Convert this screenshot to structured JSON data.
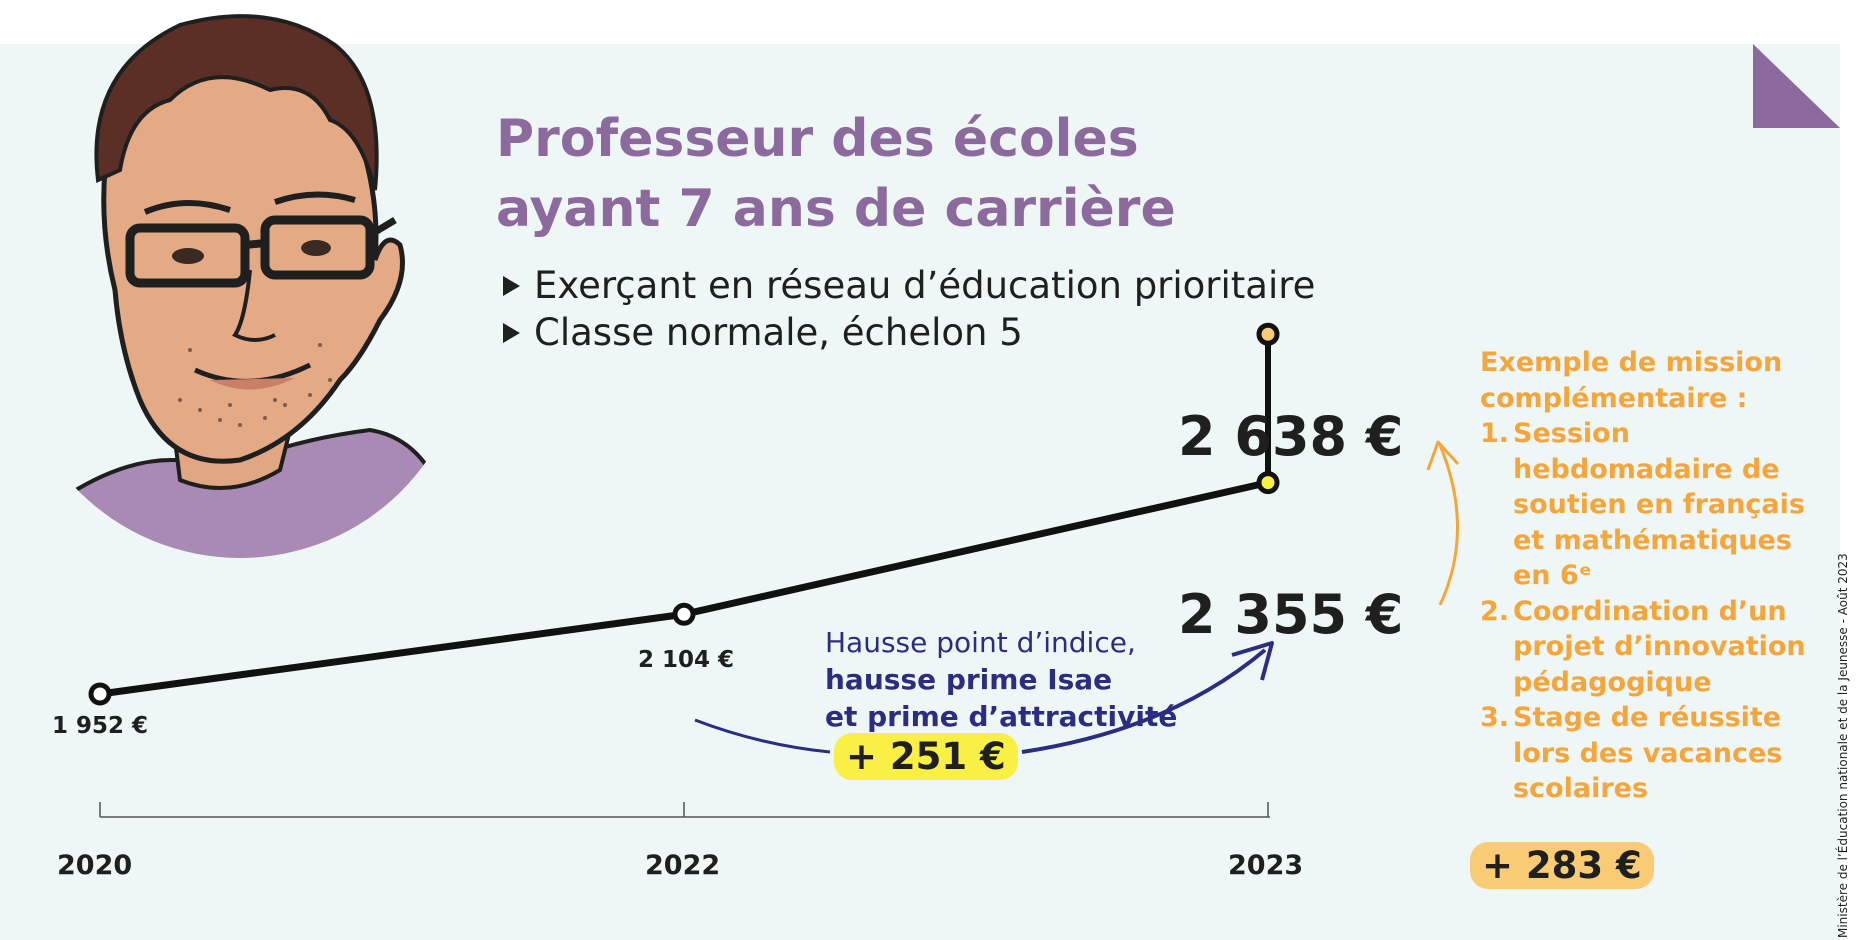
{
  "header": {
    "title_line1": "Professeur des écoles",
    "title_line2": "ayant 7 ans de carrière",
    "bullets": [
      "Exerçant en réseau d’éducation prioritaire",
      "Classe normale, échelon 5"
    ]
  },
  "chart_data": {
    "type": "line",
    "x": [
      "2020",
      "2022",
      "2023"
    ],
    "series": [
      {
        "values": [
          1952,
          2104,
          2355
        ]
      }
    ],
    "extra_point": {
      "x": "2023",
      "value": 2638
    },
    "value_labels": [
      "1 952 €",
      "2 104 €",
      "2 355 €",
      "2 638 €"
    ],
    "annotation": {
      "line1": "Hausse point d’indice,",
      "line2": "hausse prime Isae",
      "line3": "et prime d’attractivité",
      "increase": "+ 251 €"
    },
    "mission": {
      "heading_line1": "Exemple de mission",
      "heading_line2": "complémentaire :",
      "items": [
        {
          "num": "1.",
          "text": "Session hebdomadaire de soutien en français et mathématiques en 6ᵉ"
        },
        {
          "num": "2.",
          "text": "Coordination d’un projet d’innovation pédagogique"
        },
        {
          "num": "3.",
          "text": "Stage de réussite lors des vacances scolaires"
        }
      ],
      "increase": "+ 283 €"
    }
  },
  "credit": "Ministère de l’Éducation nationale et de la Jeunesse - Août 2023",
  "colors": {
    "background": "#eef6f6",
    "title": "#8c6a9e",
    "accent_orange": "#f5a53a",
    "accent_blue": "#2b2d80",
    "highlight_yellow": "#f9ef45",
    "corner": "#8c6a9e"
  }
}
